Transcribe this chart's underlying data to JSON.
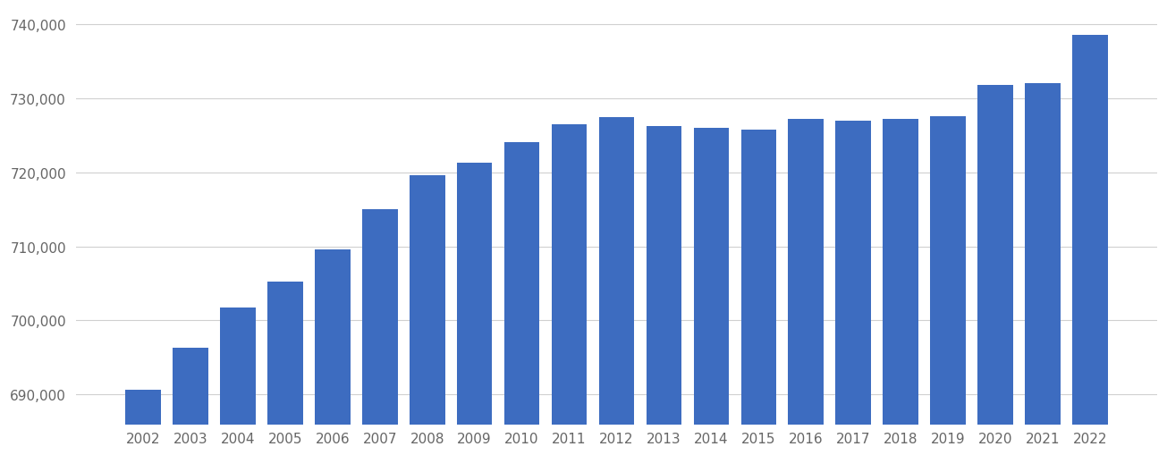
{
  "years": [
    2002,
    2003,
    2004,
    2005,
    2006,
    2007,
    2008,
    2009,
    2010,
    2011,
    2012,
    2013,
    2014,
    2015,
    2016,
    2017,
    2018,
    2019,
    2020,
    2021,
    2022
  ],
  "values": [
    690700,
    696300,
    701800,
    705200,
    709600,
    715000,
    719600,
    721300,
    724000,
    726400,
    727400,
    726200,
    726000,
    725700,
    727200,
    727000,
    727200,
    727500,
    731800,
    732000,
    738500
  ],
  "bar_color": "#3d6cc0",
  "background_color": "#ffffff",
  "ylim_min": 686000,
  "ylim_max": 742000,
  "ytick_values": [
    690000,
    700000,
    710000,
    720000,
    730000,
    740000
  ],
  "grid_color": "#d0d0d0",
  "tick_label_color": "#666666",
  "tick_fontsize": 11,
  "bar_bottom": 686000
}
